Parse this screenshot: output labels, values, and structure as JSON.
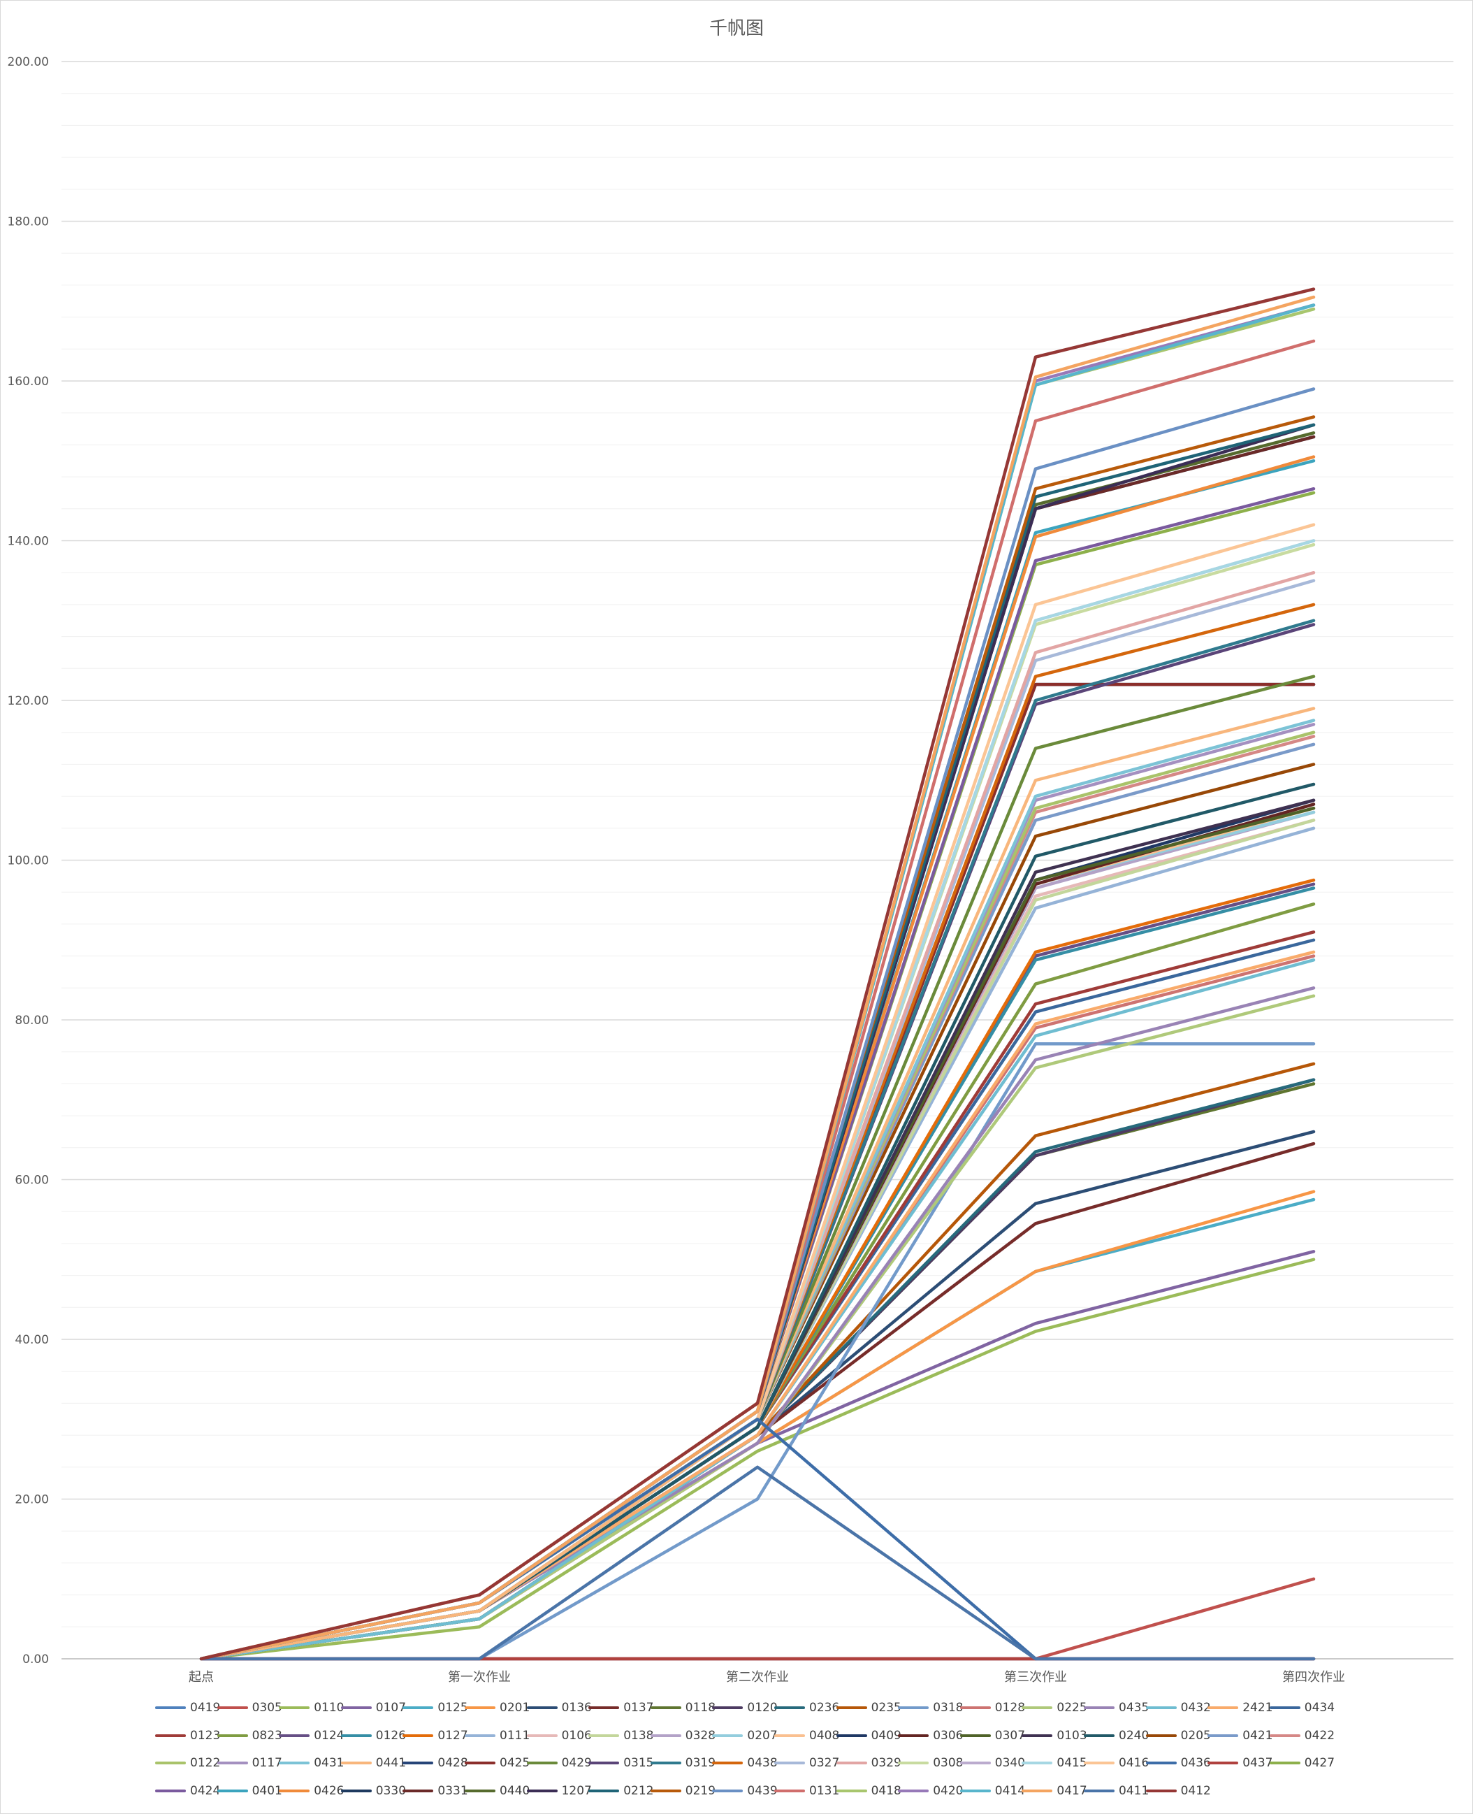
{
  "chart_data": {
    "type": "line",
    "title": "千帆图",
    "xlabel": "",
    "ylabel": "",
    "ylim": [
      0,
      200
    ],
    "y_ticks": [
      "0.00",
      "20.00",
      "40.00",
      "60.00",
      "80.00",
      "100.00",
      "120.00",
      "140.00",
      "160.00",
      "180.00",
      "200.00"
    ],
    "categories": [
      "起点",
      "第一次作业",
      "第二次作业",
      "第三次作业",
      "第四次作业"
    ],
    "grid": "horizontal",
    "legend_position": "bottom",
    "series": [
      {
        "name": "0419",
        "color": "#4F81BD",
        "values": [
          0,
          0,
          0,
          0,
          0
        ]
      },
      {
        "name": "0305",
        "color": "#C0504D",
        "values": [
          0,
          0,
          0,
          0,
          10
        ]
      },
      {
        "name": "0110",
        "color": "#9BBB59",
        "values": [
          0,
          4,
          26,
          41,
          50
        ]
      },
      {
        "name": "0107",
        "color": "#8064A2",
        "values": [
          0,
          5,
          27,
          42,
          51
        ]
      },
      {
        "name": "0125",
        "color": "#4BACC6",
        "values": [
          0,
          5,
          27,
          48.5,
          57.5
        ]
      },
      {
        "name": "0201",
        "color": "#F79646",
        "values": [
          0,
          5,
          27,
          48.5,
          58.5
        ]
      },
      {
        "name": "0136",
        "color": "#2C4D75",
        "values": [
          0,
          5,
          28,
          57,
          66
        ]
      },
      {
        "name": "0137",
        "color": "#772C2A",
        "values": [
          0,
          5,
          28,
          54.5,
          64.5
        ]
      },
      {
        "name": "0118",
        "color": "#5F7530",
        "values": [
          0,
          5,
          28,
          63,
          72
        ]
      },
      {
        "name": "0120",
        "color": "#4D3B62",
        "values": [
          0,
          5,
          28,
          63,
          72.5
        ]
      },
      {
        "name": "0236",
        "color": "#276A7C",
        "values": [
          0,
          6,
          28,
          63.5,
          72.5
        ]
      },
      {
        "name": "0235",
        "color": "#B65708",
        "values": [
          0,
          6,
          28,
          65.5,
          74.5
        ]
      },
      {
        "name": "0318",
        "color": "#729ACA",
        "values": [
          0,
          0,
          20,
          77,
          77
        ]
      },
      {
        "name": "0128",
        "color": "#CD7371",
        "values": [
          0,
          6,
          28,
          79,
          88
        ]
      },
      {
        "name": "0225",
        "color": "#AFC97A",
        "values": [
          0,
          5,
          27,
          74,
          83
        ]
      },
      {
        "name": "0435",
        "color": "#9983B5",
        "values": [
          0,
          6,
          27,
          75,
          84
        ]
      },
      {
        "name": "0432",
        "color": "#6FBDD1",
        "values": [
          0,
          5,
          28,
          78,
          87.5
        ]
      },
      {
        "name": "2421",
        "color": "#F9AB6B",
        "values": [
          0,
          6,
          28,
          79.5,
          88.5
        ]
      },
      {
        "name": "0434",
        "color": "#3A679C",
        "values": [
          0,
          6,
          29,
          81,
          90
        ]
      },
      {
        "name": "0123",
        "color": "#9F3B38",
        "values": [
          0,
          6,
          29,
          82,
          91
        ]
      },
      {
        "name": "0823",
        "color": "#7F9C42",
        "values": [
          0,
          6,
          29,
          84.5,
          94.5
        ]
      },
      {
        "name": "0124",
        "color": "#664F85",
        "values": [
          0,
          6,
          29,
          88,
          97
        ]
      },
      {
        "name": "0126",
        "color": "#358EA5",
        "values": [
          0,
          6,
          29,
          87.5,
          96.5
        ]
      },
      {
        "name": "0127",
        "color": "#E46C0A",
        "values": [
          0,
          6,
          29,
          88.5,
          97.5
        ]
      },
      {
        "name": "0111",
        "color": "#95B3D7",
        "values": [
          0,
          6,
          29,
          94,
          104
        ]
      },
      {
        "name": "0106",
        "color": "#E6B9B8",
        "values": [
          0,
          6,
          29,
          95.5,
          105
        ]
      },
      {
        "name": "0138",
        "color": "#C3D69B",
        "values": [
          0,
          6,
          29,
          95,
          105
        ]
      },
      {
        "name": "0328",
        "color": "#B3A2C7",
        "values": [
          0,
          6,
          29,
          96.5,
          106
        ]
      },
      {
        "name": "0207",
        "color": "#93CDDD",
        "values": [
          0,
          6,
          29,
          97,
          106
        ]
      },
      {
        "name": "0408",
        "color": "#FAC090",
        "values": [
          0,
          6,
          29,
          97,
          106.5
        ]
      },
      {
        "name": "0409",
        "color": "#1F3864",
        "values": [
          0,
          6,
          29,
          97.5,
          107.5
        ]
      },
      {
        "name": "0306",
        "color": "#632523",
        "values": [
          0,
          6,
          29,
          97,
          107
        ]
      },
      {
        "name": "0307",
        "color": "#4F6228",
        "values": [
          0,
          6,
          29,
          97.5,
          106.5
        ]
      },
      {
        "name": "0103",
        "color": "#3F3151",
        "values": [
          0,
          6,
          29,
          98.5,
          107.5
        ]
      },
      {
        "name": "0240",
        "color": "#215967",
        "values": [
          0,
          6,
          29,
          100.5,
          109.5
        ]
      },
      {
        "name": "0205",
        "color": "#984807",
        "values": [
          0,
          6,
          30,
          103,
          112
        ]
      },
      {
        "name": "0421",
        "color": "#7A9AC9",
        "values": [
          0,
          6,
          30,
          105,
          114.5
        ]
      },
      {
        "name": "0422",
        "color": "#D58886",
        "values": [
          0,
          6,
          30,
          106,
          115.5
        ]
      },
      {
        "name": "0122",
        "color": "#A9C36A",
        "values": [
          0,
          6,
          30,
          106.5,
          116
        ]
      },
      {
        "name": "0117",
        "color": "#A490C0",
        "values": [
          0,
          6,
          30,
          107.5,
          117
        ]
      },
      {
        "name": "0431",
        "color": "#7CC3D6",
        "values": [
          0,
          6,
          30,
          108,
          117.5
        ]
      },
      {
        "name": "0441",
        "color": "#F8B67C",
        "values": [
          0,
          6,
          30,
          110,
          119
        ]
      },
      {
        "name": "0428",
        "color": "#264478",
        "values": [
          0,
          7,
          30,
          122,
          122
        ]
      },
      {
        "name": "0425",
        "color": "#8B2E2B",
        "values": [
          0,
          7,
          30,
          122,
          122
        ]
      },
      {
        "name": "0429",
        "color": "#6A8A3A",
        "values": [
          0,
          7,
          30,
          114,
          123
        ]
      },
      {
        "name": "0315",
        "color": "#5A4478",
        "values": [
          0,
          7,
          30,
          119.5,
          129.5
        ]
      },
      {
        "name": "0319",
        "color": "#2F7A8E",
        "values": [
          0,
          7,
          30,
          120,
          130
        ]
      },
      {
        "name": "0438",
        "color": "#D4660C",
        "values": [
          0,
          7,
          30,
          123,
          132
        ]
      },
      {
        "name": "0327",
        "color": "#A7B9D9",
        "values": [
          0,
          7,
          30,
          125,
          135
        ]
      },
      {
        "name": "0329",
        "color": "#E2A5A4",
        "values": [
          0,
          7,
          30,
          126,
          136
        ]
      },
      {
        "name": "0308",
        "color": "#C8DBA0",
        "values": [
          0,
          7,
          30,
          129.5,
          139.5
        ]
      },
      {
        "name": "0340",
        "color": "#BBABCE",
        "values": [
          0,
          7,
          30,
          130,
          140
        ]
      },
      {
        "name": "0415",
        "color": "#A6D7E3",
        "values": [
          0,
          7,
          30,
          130,
          140
        ]
      },
      {
        "name": "0416",
        "color": "#FBC595",
        "values": [
          0,
          7,
          30,
          132,
          142
        ]
      },
      {
        "name": "0436",
        "color": "#3D6DA8",
        "values": [
          0,
          7,
          30,
          0,
          0
        ]
      },
      {
        "name": "0437",
        "color": "#B0413E",
        "values": [
          0,
          0,
          0,
          0,
          0
        ]
      },
      {
        "name": "0427",
        "color": "#8DB04B",
        "values": [
          0,
          7,
          31,
          137,
          146
        ]
      },
      {
        "name": "0424",
        "color": "#7A5A9E",
        "values": [
          0,
          7,
          31,
          137.5,
          146.5
        ]
      },
      {
        "name": "0401",
        "color": "#3CA4BE",
        "values": [
          0,
          7,
          31,
          141,
          150
        ]
      },
      {
        "name": "0426",
        "color": "#F08A3A",
        "values": [
          0,
          7,
          31,
          140.5,
          150.5
        ]
      },
      {
        "name": "0330",
        "color": "#1E3A5F",
        "values": [
          0,
          7,
          31,
          144,
          153
        ]
      },
      {
        "name": "0331",
        "color": "#6B2A28",
        "values": [
          0,
          7,
          31,
          144,
          153
        ]
      },
      {
        "name": "0440",
        "color": "#566B2E",
        "values": [
          0,
          7,
          31,
          144.5,
          153.5
        ]
      },
      {
        "name": "1207",
        "color": "#3B2D55",
        "values": [
          0,
          7,
          31,
          144,
          154.5
        ]
      },
      {
        "name": "0212",
        "color": "#1F6477",
        "values": [
          0,
          7,
          31,
          145.5,
          154.5
        ]
      },
      {
        "name": "0219",
        "color": "#B85A0A",
        "values": [
          0,
          8,
          32,
          146.5,
          155.5
        ]
      },
      {
        "name": "0439",
        "color": "#6A90C4",
        "values": [
          0,
          7,
          31,
          149,
          159
        ]
      },
      {
        "name": "0131",
        "color": "#D06E6C",
        "values": [
          0,
          7,
          31,
          155,
          165
        ]
      },
      {
        "name": "0418",
        "color": "#A8C66E",
        "values": [
          0,
          7,
          31,
          159.5,
          169
        ]
      },
      {
        "name": "0420",
        "color": "#9779B8",
        "values": [
          0,
          7,
          31,
          160,
          169.5
        ]
      },
      {
        "name": "0414",
        "color": "#58B5CC",
        "values": [
          0,
          7,
          31,
          159.5,
          169.5
        ]
      },
      {
        "name": "0417",
        "color": "#F4A460",
        "values": [
          0,
          7,
          31,
          160.5,
          170.5
        ]
      },
      {
        "name": "0411",
        "color": "#4A74A8",
        "values": [
          0,
          0,
          24,
          0,
          0
        ]
      },
      {
        "name": "0412",
        "color": "#953735",
        "values": [
          0,
          8,
          32,
          163,
          171.5
        ]
      }
    ]
  }
}
